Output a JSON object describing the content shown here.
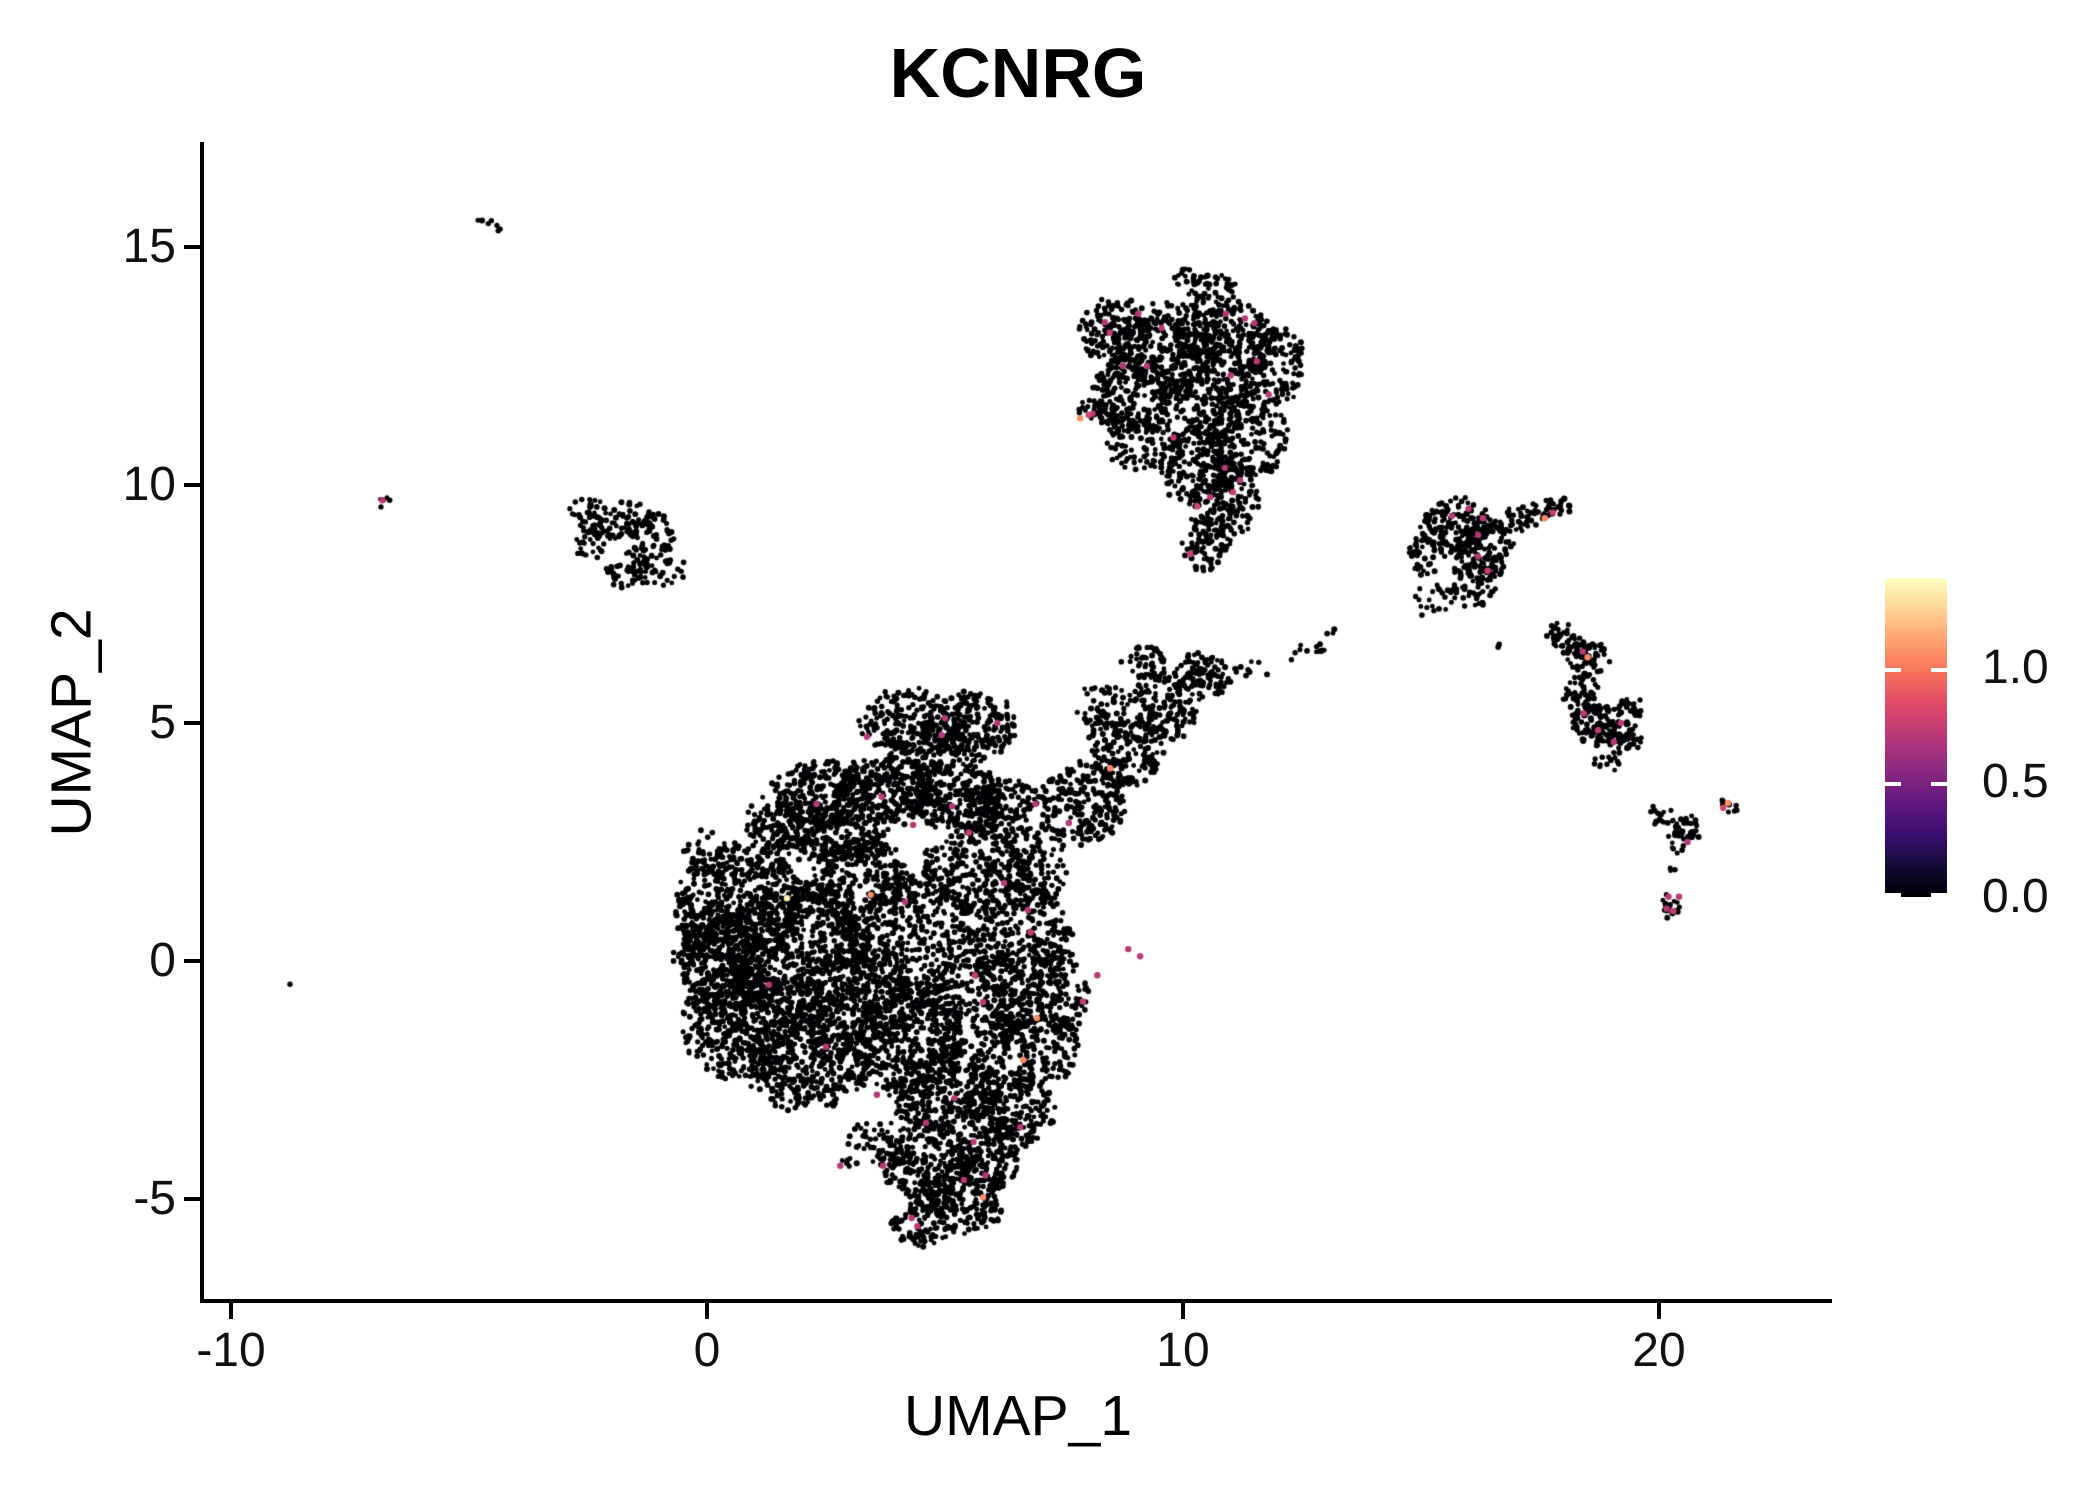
{
  "figure": {
    "title": "KCNRG"
  },
  "chart_data": {
    "type": "scatter",
    "title": "KCNRG",
    "xlabel": "UMAP_1",
    "ylabel": "UMAP_2",
    "xlim": [
      -10.5,
      23.6
    ],
    "ylim": [
      -7.1,
      17.2
    ],
    "grid": false,
    "x_ticks": [
      {
        "label": "-10",
        "value": -10
      },
      {
        "label": "0",
        "value": 0
      },
      {
        "label": "10",
        "value": 10
      },
      {
        "label": "20",
        "value": 20
      }
    ],
    "y_ticks": [
      {
        "label": "15",
        "value": 15
      },
      {
        "label": "10",
        "value": 10
      },
      {
        "label": "5",
        "value": 5
      },
      {
        "label": "0",
        "value": 0
      },
      {
        "label": "-5",
        "value": -5
      }
    ],
    "point_color": "#000004",
    "point_radius_px": 2.7,
    "highlight_radius_px": 3.2,
    "colorbar": {
      "position": "right",
      "colormap": "magma",
      "vmin": 0.0,
      "vmax": 1.39,
      "ticks": [
        {
          "label": "1.0",
          "value": 1.0
        },
        {
          "label": "0.5",
          "value": 0.5
        },
        {
          "label": "0.0",
          "value": 0.0
        }
      ],
      "stops": [
        [
          0.0,
          "#000004"
        ],
        [
          0.1,
          "#160b39"
        ],
        [
          0.2,
          "#3b0f70"
        ],
        [
          0.3,
          "#641a80"
        ],
        [
          0.4,
          "#8c2981"
        ],
        [
          0.5,
          "#b73779"
        ],
        [
          0.6,
          "#de4968"
        ],
        [
          0.7,
          "#f7705c"
        ],
        [
          0.8,
          "#fe9f6d"
        ],
        [
          0.9,
          "#fed395"
        ],
        [
          1.0,
          "#fcfdbf"
        ]
      ]
    },
    "clusters": [
      {
        "name": "main-central",
        "blobs": [
          [
            4.2,
            5.05,
            0.95,
            0.7,
            170
          ],
          [
            5.5,
            4.95,
            1.0,
            0.7,
            190
          ],
          [
            4.85,
            4.5,
            1.2,
            0.5,
            120
          ],
          [
            2.4,
            3.55,
            1.05,
            0.65,
            230
          ],
          [
            3.8,
            3.6,
            1.05,
            0.7,
            260
          ],
          [
            5.2,
            3.5,
            1.1,
            0.7,
            260
          ],
          [
            6.3,
            3.2,
            0.85,
            0.6,
            170
          ],
          [
            1.6,
            2.9,
            0.8,
            0.6,
            140
          ],
          [
            2.6,
            2.6,
            1.2,
            0.6,
            200
          ],
          [
            0.7,
            1.2,
            1.35,
            1.25,
            520
          ],
          [
            1.9,
            0.2,
            1.5,
            1.5,
            650
          ],
          [
            0.75,
            -1.3,
            1.25,
            1.25,
            480
          ],
          [
            2.1,
            -2.1,
            1.35,
            1.05,
            420
          ],
          [
            0.3,
            -0.1,
            0.9,
            1.2,
            280
          ],
          [
            3.2,
            1.6,
            1.05,
            1.0,
            300
          ],
          [
            3.1,
            -0.7,
            1.2,
            1.35,
            420
          ],
          [
            4.4,
            0.6,
            1.15,
            1.4,
            330
          ],
          [
            4.2,
            -1.6,
            1.1,
            1.2,
            330
          ],
          [
            5.7,
            1.9,
            1.15,
            0.95,
            300
          ],
          [
            6.6,
            0.4,
            1.05,
            1.25,
            340
          ],
          [
            5.6,
            -0.9,
            1.2,
            1.1,
            340
          ],
          [
            6.9,
            -1.7,
            0.95,
            0.95,
            240
          ],
          [
            5.0,
            -2.7,
            1.15,
            0.9,
            300
          ],
          [
            6.3,
            -3.1,
            1.0,
            0.85,
            260
          ],
          [
            7.4,
            -0.6,
            0.6,
            0.9,
            130
          ],
          [
            4.6,
            -4.2,
            1.05,
            0.8,
            260
          ],
          [
            5.4,
            -5.0,
            0.85,
            0.7,
            180
          ],
          [
            4.5,
            -5.5,
            0.6,
            0.5,
            90
          ],
          [
            5.9,
            -4.2,
            0.7,
            0.6,
            130
          ],
          [
            7.9,
            3.3,
            0.9,
            0.85,
            200
          ],
          [
            8.8,
            4.4,
            0.8,
            0.75,
            170
          ],
          [
            9.6,
            5.3,
            0.75,
            0.7,
            140
          ],
          [
            10.4,
            6.0,
            0.6,
            0.5,
            100
          ],
          [
            9.2,
            6.3,
            0.45,
            0.35,
            45
          ],
          [
            8.3,
            5.3,
            0.5,
            0.5,
            60
          ],
          [
            0.0,
            2.3,
            0.5,
            0.5,
            30
          ],
          [
            -0.4,
            0.3,
            0.35,
            0.8,
            40
          ],
          [
            3.5,
            -3.9,
            0.8,
            0.5,
            60
          ],
          [
            7.0,
            2.0,
            0.6,
            0.8,
            90
          ]
        ]
      },
      {
        "name": "sparse-trail-right",
        "blobs": [
          [
            11.4,
            6.1,
            0.45,
            0.25,
            10
          ],
          [
            12.6,
            6.5,
            0.4,
            0.2,
            12
          ],
          [
            13.2,
            6.85,
            0.15,
            0.1,
            3
          ]
        ]
      },
      {
        "name": "top-middle",
        "blobs": [
          [
            9.7,
            12.9,
            1.2,
            0.95,
            280
          ],
          [
            10.9,
            13.0,
            1.05,
            0.85,
            240
          ],
          [
            11.8,
            12.5,
            0.75,
            0.85,
            160
          ],
          [
            8.6,
            13.2,
            0.75,
            0.7,
            150
          ],
          [
            9.0,
            11.9,
            0.95,
            0.85,
            200
          ],
          [
            10.3,
            11.6,
            1.0,
            0.95,
            230
          ],
          [
            11.35,
            11.0,
            0.85,
            0.9,
            190
          ],
          [
            10.3,
            10.4,
            0.8,
            0.8,
            160
          ],
          [
            10.9,
            9.7,
            0.7,
            0.8,
            150
          ],
          [
            10.5,
            8.8,
            0.5,
            0.6,
            80
          ],
          [
            10.6,
            14.0,
            0.5,
            0.45,
            55
          ],
          [
            10.05,
            14.35,
            0.3,
            0.25,
            18
          ],
          [
            9.0,
            10.8,
            0.6,
            0.6,
            80
          ],
          [
            8.3,
            11.5,
            0.6,
            0.18,
            40,
            -18
          ]
        ]
      },
      {
        "name": "left-small",
        "blobs": [
          [
            -1.95,
            9.3,
            0.8,
            0.42,
            70
          ],
          [
            -1.25,
            8.95,
            0.6,
            0.5,
            60
          ],
          [
            -2.45,
            8.85,
            0.4,
            0.38,
            30
          ],
          [
            -1.05,
            8.3,
            0.6,
            0.45,
            55
          ],
          [
            -1.75,
            8.1,
            0.45,
            0.3,
            25
          ],
          [
            -2.6,
            9.5,
            0.3,
            0.25,
            15
          ]
        ]
      },
      {
        "name": "right-mid",
        "blobs": [
          [
            15.75,
            9.15,
            0.8,
            0.55,
            150
          ],
          [
            16.35,
            8.6,
            0.6,
            0.6,
            110
          ],
          [
            16.1,
            7.9,
            0.5,
            0.5,
            55
          ],
          [
            17.0,
            9.25,
            0.65,
            0.25,
            50,
            14
          ],
          [
            17.7,
            9.5,
            0.45,
            0.2,
            28,
            20
          ],
          [
            15.35,
            7.55,
            0.5,
            0.4,
            22
          ],
          [
            15.1,
            8.6,
            0.4,
            0.5,
            40
          ],
          [
            16.6,
            6.6,
            0.08,
            0.08,
            2
          ]
        ]
      },
      {
        "name": "right-elongated",
        "blobs": [
          [
            18.1,
            6.75,
            0.5,
            0.3,
            55,
            -25
          ],
          [
            18.5,
            6.35,
            0.4,
            0.35,
            55
          ],
          [
            18.35,
            5.6,
            0.35,
            0.45,
            45
          ],
          [
            18.65,
            5.0,
            0.5,
            0.45,
            85
          ],
          [
            19.1,
            4.75,
            0.5,
            0.35,
            70
          ],
          [
            19.35,
            5.35,
            0.3,
            0.3,
            25
          ],
          [
            18.9,
            4.15,
            0.3,
            0.2,
            12
          ],
          [
            19.65,
            4.55,
            0.1,
            0.08,
            2
          ]
        ]
      },
      {
        "name": "small-y-cluster",
        "blobs": [
          [
            20.15,
            2.95,
            0.4,
            0.2,
            22,
            -30
          ],
          [
            20.6,
            2.8,
            0.3,
            0.3,
            22
          ],
          [
            20.35,
            2.5,
            0.25,
            0.3,
            16
          ],
          [
            20.25,
            1.95,
            0.08,
            0.1,
            3
          ]
        ]
      },
      {
        "name": "mini-cluster-low",
        "blobs": [
          [
            20.3,
            1.2,
            0.28,
            0.28,
            16
          ]
        ]
      },
      {
        "name": "dash-right",
        "blobs": [
          [
            21.45,
            3.3,
            0.3,
            0.1,
            8,
            -35
          ]
        ]
      },
      {
        "name": "dash-top-left",
        "blobs": [
          [
            -4.6,
            15.5,
            0.3,
            0.09,
            7,
            -30
          ]
        ]
      },
      {
        "name": "pair-far-left",
        "blobs": [
          [
            -6.85,
            9.65,
            0.22,
            0.16,
            5,
            -40
          ]
        ]
      },
      {
        "name": "lone-dot-left",
        "blobs": [
          [
            -8.7,
            -0.5,
            0.02,
            0.02,
            1
          ]
        ]
      }
    ],
    "highlight_points": [
      [
        8.36,
        13.42,
        0.7
      ],
      [
        9.06,
        13.6,
        0.7
      ],
      [
        8.46,
        13.2,
        0.72
      ],
      [
        9.55,
        13.3,
        0.7
      ],
      [
        10.9,
        13.6,
        0.7
      ],
      [
        11.3,
        13.5,
        0.72
      ],
      [
        11.5,
        13.4,
        0.7
      ],
      [
        8.74,
        12.5,
        0.7
      ],
      [
        9.24,
        12.5,
        0.7
      ],
      [
        11.0,
        12.3,
        0.7
      ],
      [
        11.55,
        12.6,
        0.72
      ],
      [
        11.8,
        11.9,
        0.7
      ],
      [
        8.1,
        11.5,
        0.7
      ],
      [
        7.84,
        11.4,
        1.05
      ],
      [
        8.02,
        11.47,
        0.8
      ],
      [
        9.8,
        11.0,
        0.72
      ],
      [
        10.88,
        10.36,
        0.7
      ],
      [
        11.2,
        10.1,
        0.7
      ],
      [
        11.05,
        9.85,
        0.75
      ],
      [
        10.57,
        9.75,
        0.7
      ],
      [
        10.3,
        9.55,
        0.8
      ],
      [
        10.15,
        8.55,
        0.75
      ],
      [
        1.68,
        1.32,
        1.35
      ],
      [
        3.44,
        1.39,
        1.05
      ],
      [
        4.16,
        1.24,
        0.7
      ],
      [
        3.36,
        4.71,
        0.7
      ],
      [
        4.93,
        4.75,
        0.7
      ],
      [
        3.67,
        3.45,
        0.72
      ],
      [
        4.33,
        2.86,
        0.7
      ],
      [
        6.24,
        1.64,
        0.7
      ],
      [
        6.74,
        1.07,
        0.72
      ],
      [
        6.8,
        0.6,
        0.75
      ],
      [
        6.93,
        -1.2,
        1.05
      ],
      [
        6.64,
        -2.08,
        1.05
      ],
      [
        5.63,
        -0.3,
        0.75
      ],
      [
        5.8,
        -0.86,
        0.72
      ],
      [
        3.57,
        -2.81,
        0.7
      ],
      [
        5.2,
        -2.88,
        0.72
      ],
      [
        6.58,
        -3.49,
        0.7
      ],
      [
        2.8,
        -4.3,
        0.7
      ],
      [
        3.7,
        -4.3,
        0.72
      ],
      [
        4.6,
        -3.4,
        0.7
      ],
      [
        5.6,
        -3.8,
        0.72
      ],
      [
        5.4,
        -4.6,
        0.7
      ],
      [
        5.85,
        -4.5,
        0.7
      ],
      [
        5.8,
        -4.97,
        1.05
      ],
      [
        4.3,
        -5.4,
        0.7
      ],
      [
        4.42,
        -5.57,
        0.72
      ],
      [
        8.47,
        4.05,
        1.05
      ],
      [
        7.6,
        2.9,
        0.7
      ],
      [
        8.85,
        0.25,
        0.7
      ],
      [
        9.1,
        0.1,
        0.72
      ],
      [
        7.9,
        -0.85,
        0.75
      ],
      [
        8.2,
        -0.3,
        0.7
      ],
      [
        5.0,
        5.1,
        0.7
      ],
      [
        6.1,
        5.0,
        0.7
      ],
      [
        2.3,
        3.3,
        0.7
      ],
      [
        5.15,
        3.25,
        0.7
      ],
      [
        5.5,
        2.7,
        0.75
      ],
      [
        6.9,
        3.3,
        0.7
      ],
      [
        1.3,
        -0.5,
        0.7
      ],
      [
        2.5,
        -1.8,
        0.7
      ],
      [
        16.0,
        9.5,
        0.7
      ],
      [
        16.3,
        9.3,
        0.72
      ],
      [
        16.2,
        8.95,
        0.7
      ],
      [
        16.2,
        8.5,
        0.7
      ],
      [
        16.4,
        8.2,
        0.75
      ],
      [
        17.6,
        9.3,
        1.05
      ],
      [
        17.77,
        9.42,
        0.75
      ],
      [
        15.65,
        9.35,
        0.7
      ],
      [
        18.4,
        6.5,
        0.7
      ],
      [
        18.5,
        6.38,
        1.05
      ],
      [
        18.42,
        5.2,
        0.7
      ],
      [
        18.72,
        4.85,
        0.75
      ],
      [
        19.2,
        5.0,
        0.72
      ],
      [
        19.05,
        4.6,
        0.7
      ],
      [
        20.6,
        2.5,
        0.7
      ],
      [
        20.2,
        1.35,
        0.72
      ],
      [
        20.42,
        1.35,
        0.7
      ],
      [
        20.3,
        1.05,
        0.75
      ],
      [
        20.16,
        1.1,
        0.7
      ],
      [
        21.45,
        3.32,
        1.05
      ],
      [
        21.35,
        3.22,
        0.8
      ],
      [
        -6.82,
        9.68,
        0.72
      ]
    ]
  }
}
